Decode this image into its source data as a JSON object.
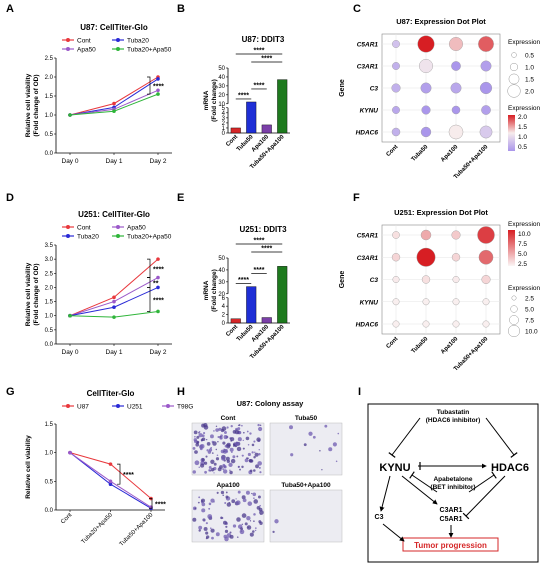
{
  "panel_letters": [
    "A",
    "B",
    "C",
    "D",
    "E",
    "F",
    "G",
    "H",
    "I"
  ],
  "chart_data": [
    {
      "panel": "A",
      "type": "line",
      "title": "U87: CellTiter-Glo",
      "xlabel": "",
      "ylabel": "Relative cell viability (Fold change of OD)",
      "categories": [
        "Day 0",
        "Day 1",
        "Day 2"
      ],
      "ylim": [
        0,
        2.5
      ],
      "yticks": [
        0.0,
        0.5,
        1.0,
        1.5,
        2.0,
        2.5
      ],
      "series": [
        {
          "name": "Cont",
          "color": "#e8383d",
          "values": [
            1.0,
            1.3,
            2.0
          ]
        },
        {
          "name": "Tuba20",
          "color": "#2a2ad6",
          "values": [
            1.0,
            1.2,
            1.95
          ]
        },
        {
          "name": "Apa50",
          "color": "#9b59c9",
          "values": [
            1.0,
            1.15,
            1.65
          ]
        },
        {
          "name": "Tuba20+Apa50",
          "color": "#2fb53a",
          "values": [
            1.0,
            1.1,
            1.55
          ]
        }
      ],
      "significance": [
        "****"
      ]
    },
    {
      "panel": "B",
      "type": "bar",
      "title": "U87: DDIT3",
      "ylabel": "mRNA (Fold change)",
      "categories": [
        "Cont",
        "Tuba50",
        "Apa100",
        "Tuba50+Apa100"
      ],
      "values": [
        1.0,
        12.0,
        1.6,
        37.0
      ],
      "colors": [
        "#d62728",
        "#1f2fd6",
        "#7b3fa8",
        "#1e7a1e"
      ],
      "yticks": [
        0,
        1,
        2,
        3,
        4,
        5,
        10,
        20,
        30,
        40,
        50
      ],
      "significance": [
        "****",
        "****",
        "****",
        "****"
      ]
    },
    {
      "panel": "C",
      "type": "scatter",
      "title": "U87: Expression Dot Plot",
      "ylabel": "Gene",
      "genes": [
        "C5AR1",
        "C3AR1",
        "C3",
        "KYNU",
        "HDAC6"
      ],
      "conditions": [
        "Cont",
        "Tuba50",
        "Apa100",
        "Tuba50+Apa100"
      ],
      "expression": [
        [
          0.5,
          2.3,
          1.3,
          1.9
        ],
        [
          0.3,
          0.9,
          0.0,
          0.1
        ],
        [
          0.3,
          0.1,
          0.2,
          0.0
        ],
        [
          0.2,
          0.0,
          0.0,
          0.1
        ],
        [
          0.3,
          0.0,
          1.0,
          0.6
        ]
      ],
      "size": [
        [
          0.5,
          2.0,
          1.5,
          1.8
        ],
        [
          0.5,
          1.5,
          0.8,
          1.0
        ],
        [
          0.7,
          1.0,
          1.0,
          1.2
        ],
        [
          0.5,
          0.7,
          0.6,
          0.8
        ],
        [
          0.6,
          0.9,
          1.6,
          1.3
        ]
      ],
      "size_legend_title": "Expression",
      "size_legend": [
        "0.5",
        "1.0",
        "1.5",
        "2.0"
      ],
      "color_legend_title": "Expression",
      "color_legend": [
        "2.0",
        "1.5",
        "1.0",
        "0.5"
      ]
    },
    {
      "panel": "D",
      "type": "line",
      "title": "U251: CellTiter-Glo",
      "ylabel": "Relative cell viability (Fold change of OD)",
      "categories": [
        "Day 0",
        "Day 1",
        "Day 2"
      ],
      "ylim": [
        0,
        3.5
      ],
      "yticks": [
        0.0,
        0.5,
        1.0,
        1.5,
        2.0,
        2.5,
        3.0,
        3.5
      ],
      "series": [
        {
          "name": "Cont",
          "color": "#e8383d",
          "values": [
            1.0,
            1.65,
            3.0
          ]
        },
        {
          "name": "Apa50",
          "color": "#9b59c9",
          "values": [
            1.0,
            1.5,
            2.35
          ]
        },
        {
          "name": "Tuba20",
          "color": "#2a2ad6",
          "values": [
            1.0,
            1.3,
            2.0
          ]
        },
        {
          "name": "Tuba20+Apa50",
          "color": "#2fb53a",
          "values": [
            1.0,
            0.95,
            1.15
          ]
        }
      ],
      "significance": [
        "****",
        "**",
        "****"
      ]
    },
    {
      "panel": "E",
      "type": "bar",
      "title": "U251: DDIT3",
      "ylabel": "mRNA (Fold change)",
      "categories": [
        "Cont",
        "Tuba50",
        "Apa100",
        "Tuba50+Apa100"
      ],
      "values": [
        1.0,
        26.0,
        1.3,
        43.0
      ],
      "colors": [
        "#d62728",
        "#1f2fd6",
        "#7b3fa8",
        "#1e7a1e"
      ],
      "yticks": [
        0,
        2,
        4,
        6,
        20,
        30,
        40,
        50
      ],
      "significance": [
        "****",
        "****",
        "****",
        "****"
      ]
    },
    {
      "panel": "F",
      "type": "scatter",
      "title": "U251: Expression Dot Plot",
      "ylabel": "Gene",
      "genes": [
        "C5AR1",
        "C3AR1",
        "C3",
        "KYNU",
        "HDAC6"
      ],
      "conditions": [
        "Cont",
        "Tuba50",
        "Apa100",
        "Tuba50+Apa100"
      ],
      "expression": [
        [
          1.0,
          3.5,
          2.0,
          8.5
        ],
        [
          1.5,
          10.0,
          1.5,
          6.5
        ],
        [
          0.5,
          1.0,
          0.5,
          1.5
        ],
        [
          0.3,
          0.3,
          0.3,
          0.3
        ],
        [
          0.3,
          0.3,
          0.3,
          0.3
        ]
      ],
      "size": [
        [
          2.0,
          4.0,
          3.0,
          9.0
        ],
        [
          2.5,
          10.0,
          2.5,
          7.0
        ],
        [
          1.5,
          2.5,
          1.5,
          3.0
        ],
        [
          1.5,
          1.5,
          1.5,
          1.5
        ],
        [
          1.5,
          1.5,
          1.5,
          1.5
        ]
      ],
      "color_legend_title": "Expression",
      "color_legend": [
        "10.0",
        "7.5",
        "5.0",
        "2.5"
      ],
      "size_legend_title": "Expression",
      "size_legend": [
        "2.5",
        "5.0",
        "7.5",
        "10.0"
      ]
    },
    {
      "panel": "G",
      "type": "line",
      "title": "CellTiter-Glo",
      "ylabel": "Relative cell viability",
      "categories": [
        "Cont",
        "Tuba20+Apa50",
        "Tuba50+Apa100"
      ],
      "ylim": [
        0,
        1.5
      ],
      "yticks": [
        0.0,
        0.5,
        1.0,
        1.5
      ],
      "series": [
        {
          "name": "U87",
          "color": "#e8383d",
          "values": [
            1.0,
            0.8,
            0.2
          ]
        },
        {
          "name": "U251",
          "color": "#2a2ad6",
          "values": [
            1.0,
            0.45,
            0.03
          ]
        },
        {
          "name": "T98G",
          "color": "#9b59c9",
          "values": [
            1.0,
            0.5,
            0.05
          ]
        }
      ],
      "significance": [
        "****",
        "****"
      ]
    }
  ],
  "colony": {
    "title": "U87: Colony assay",
    "labels": [
      "Cont",
      "Tuba50",
      "Apa100",
      "Tuba50+Apa100"
    ]
  },
  "diagram": {
    "nodes": {
      "tubastatin": "Tubastatin",
      "tubastatin_sub": "(HDAC6 inhibitor)",
      "kynu": "KYNU",
      "hdac6": "HDAC6",
      "apabetalone": "Apabetalone",
      "apabetalone_sub": "(BET inhibitor)",
      "c3": "C3",
      "c3ar1": "C3AR1",
      "c5ar1": "C5AR1",
      "outcome": "Tumor progression"
    },
    "outcome_color": "#d62728"
  }
}
